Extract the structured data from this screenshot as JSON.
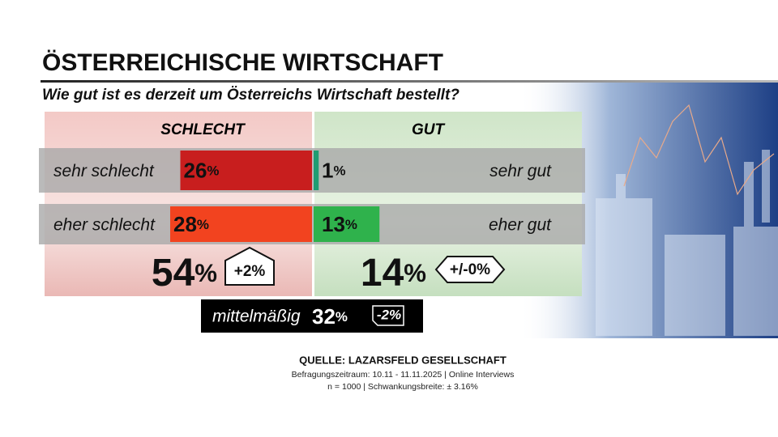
{
  "chart_data": {
    "type": "diverging_bar",
    "title": "ÖSTERREICHISCHE WIRTSCHAFT",
    "subtitle": "Wie gut ist es derzeit um Österreichs Wirtschaft bestellt?",
    "negative_header": "SCHLECHT",
    "positive_header": "GUT",
    "rows": [
      {
        "negative_name": "sehr schlecht",
        "negative_value": 26,
        "negative_value_label": "26%",
        "negative_color": "#c81e1e",
        "positive_name": "sehr gut",
        "positive_value": 1,
        "positive_value_label": "1%",
        "positive_color": "#1f9d72"
      },
      {
        "negative_name": "eher schlecht",
        "negative_value": 28,
        "negative_value_label": "28%",
        "negative_color": "#f2431f",
        "positive_name": "eher gut",
        "positive_value": 13,
        "positive_value_label": "13%",
        "positive_color": "#2fb24c"
      }
    ],
    "totals": {
      "negative_value": 54,
      "negative_value_label": "54%",
      "negative_change": "+2%",
      "positive_value": 14,
      "positive_value_label": "14%",
      "positive_change": "+/-0%"
    },
    "neutral": {
      "name": "mittelmäßig",
      "value": 32,
      "value_label": "32%",
      "change": "-2%"
    }
  },
  "source": {
    "title": "QUELLE:  LAZARSFELD GESELLSCHAFT",
    "lines": [
      "Befragungszeitraum:   10.11 - 11.11.2025   | Online Interviews",
      "n = 1000 |  Schwankungsbreite: ± 3.16%"
    ]
  }
}
